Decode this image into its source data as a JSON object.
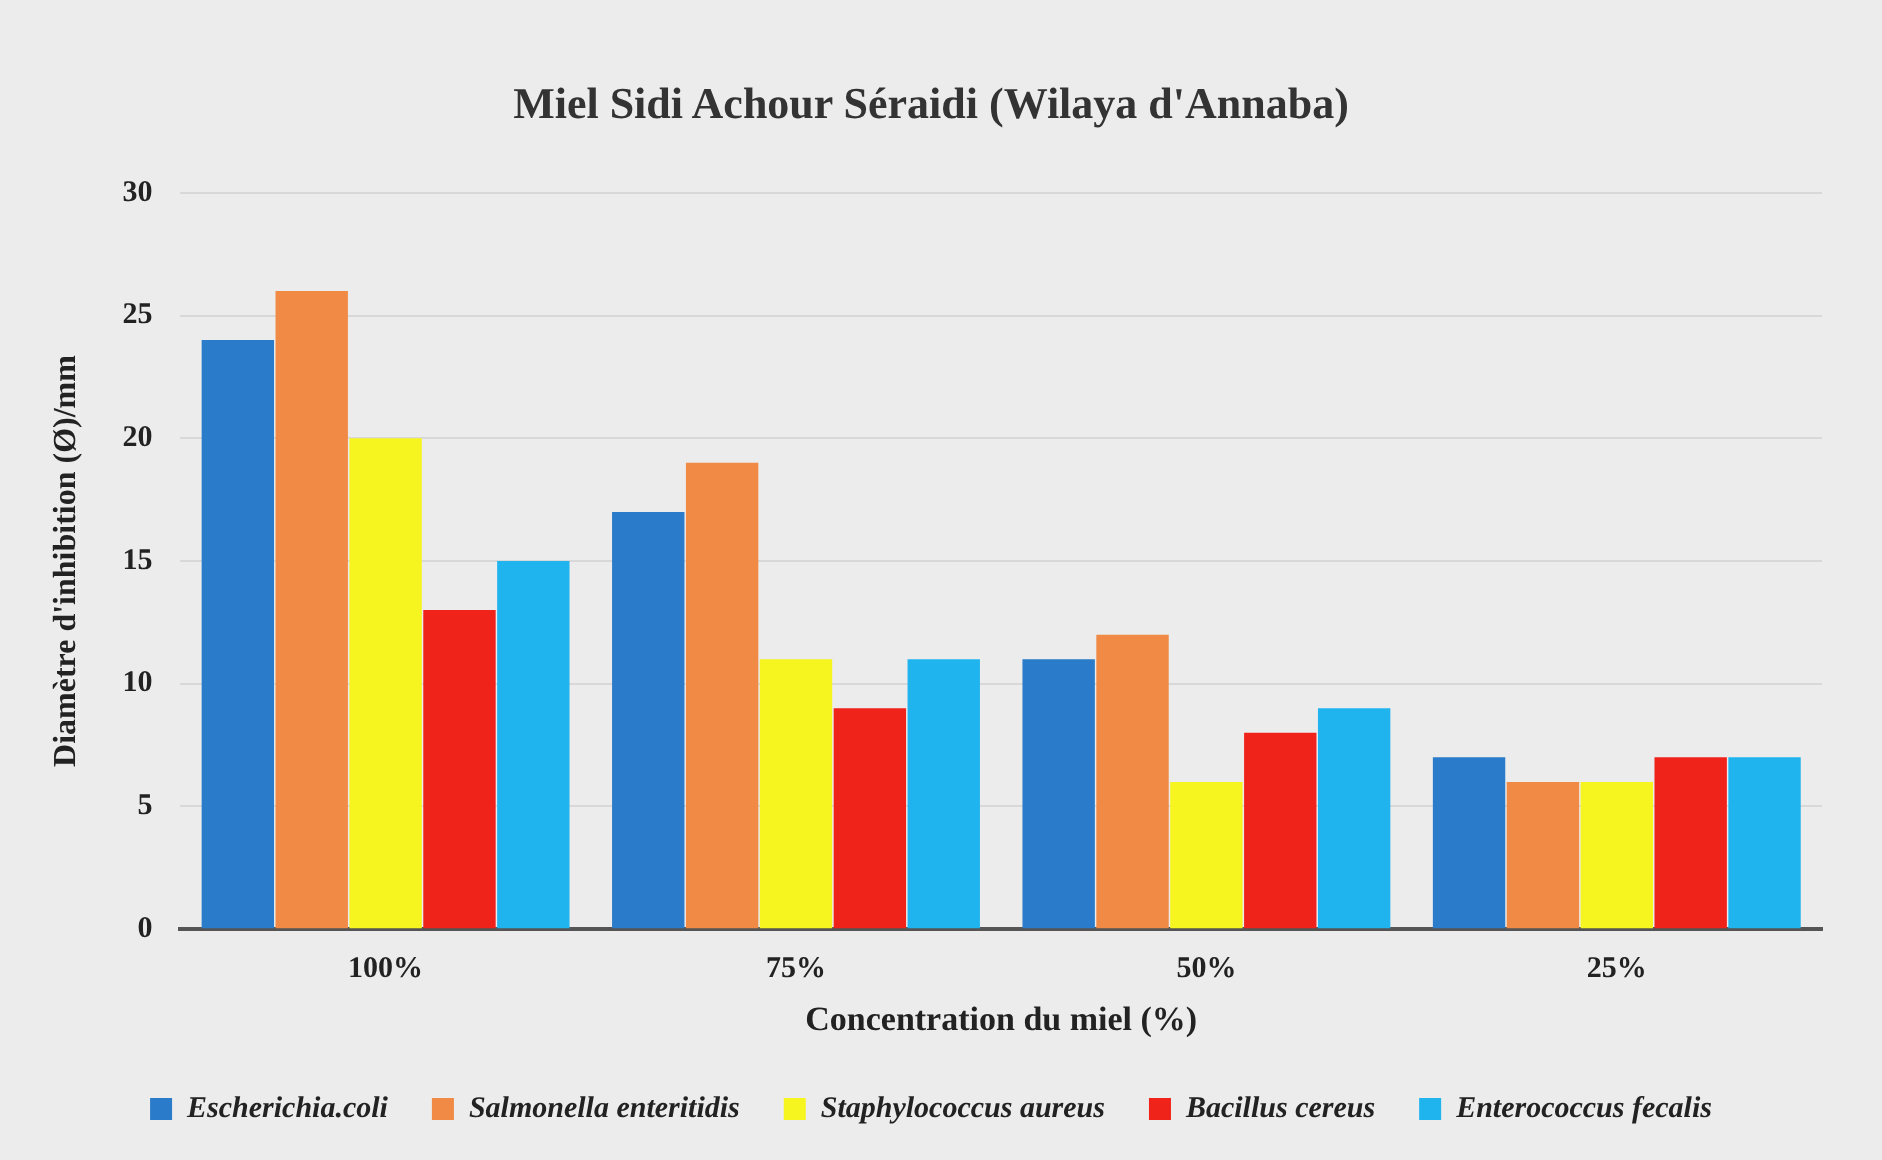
{
  "chart_data": {
    "type": "bar",
    "title": "Miel Sidi Achour Séraidi (Wilaya d'Annaba)",
    "xlabel": "Concentration du miel (%)",
    "ylabel": "Diamètre d'inhibition (Ø)/mm",
    "categories": [
      "100%",
      "75%",
      "50%",
      "25%"
    ],
    "series": [
      {
        "name": "Escherichia.coli",
        "color": "#2a7bc9",
        "values": [
          24,
          17,
          11,
          7
        ]
      },
      {
        "name": "Salmonella enteritidis",
        "color": "#f08a45",
        "values": [
          26,
          19,
          12,
          6
        ]
      },
      {
        "name": "Staphylococcus aureus",
        "color": "#f7f51f",
        "values": [
          20,
          11,
          6,
          6
        ]
      },
      {
        "name": "Bacillus cereus",
        "color": "#f0231a",
        "values": [
          13,
          9,
          8,
          7
        ]
      },
      {
        "name": "Enterococcus fecalis",
        "color": "#20b4ef",
        "values": [
          15,
          11,
          9,
          7
        ]
      }
    ],
    "ylim": [
      0,
      30
    ],
    "yticks": [
      0,
      5,
      10,
      15,
      20,
      25,
      30
    ],
    "grid": "y",
    "legend": "bottom"
  }
}
